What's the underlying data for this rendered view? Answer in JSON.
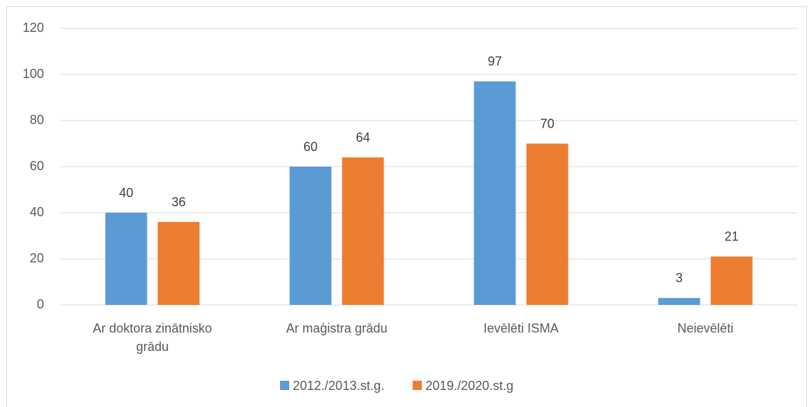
{
  "chart_data": {
    "type": "bar",
    "categories": [
      "Ar doktora zinātnisko grādu",
      "Ar maģistra grādu",
      "Ievēlēti ISMA",
      "Neievēlēti"
    ],
    "series": [
      {
        "name": "2012./2013.st.g.",
        "color": "#5b9bd5",
        "values": [
          40,
          60,
          97,
          3
        ]
      },
      {
        "name": "2019./2020.st.g",
        "color": "#ed7d31",
        "values": [
          36,
          64,
          70,
          21
        ]
      }
    ],
    "ylim": [
      0,
      120
    ],
    "yticks": [
      0,
      20,
      40,
      60,
      80,
      100,
      120
    ],
    "grid": true,
    "legend": "bottom"
  }
}
